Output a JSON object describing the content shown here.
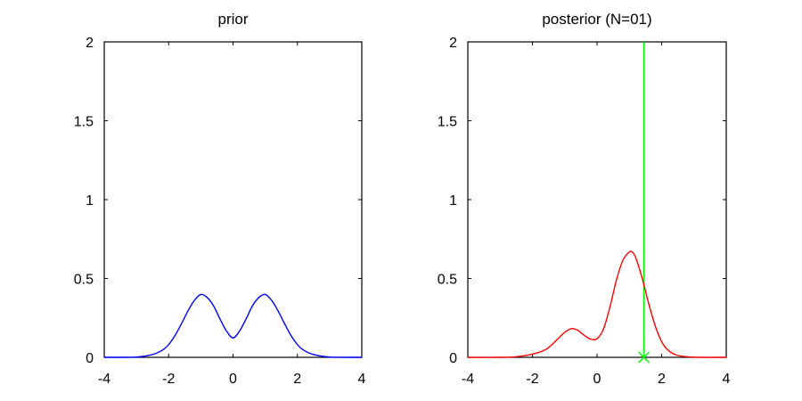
{
  "chart_data": [
    {
      "type": "line",
      "title": "prior",
      "xlim": [
        -4,
        4
      ],
      "ylim": [
        0,
        2
      ],
      "xticks": [
        -4,
        -2,
        0,
        2,
        4
      ],
      "yticks": [
        0,
        0.5,
        1,
        1.5,
        2
      ],
      "xtick_labels": [
        "-4",
        "-2",
        "0",
        "2",
        "4"
      ],
      "ytick_labels": [
        "0",
        "0.5",
        "1",
        "1.5",
        "2"
      ],
      "grid": false,
      "series": [
        {
          "color": "#0000ff",
          "x": [
            -4.0,
            -3.0,
            -2.5,
            -2.2,
            -2.0,
            -1.8,
            -1.6,
            -1.4,
            -1.2,
            -1.0,
            -0.8,
            -0.6,
            -0.4,
            -0.2,
            0.0,
            0.2,
            0.4,
            0.6,
            0.8,
            1.0,
            1.2,
            1.4,
            1.6,
            1.8,
            2.0,
            2.2,
            2.5,
            3.0,
            4.0
          ],
          "y": [
            0.0,
            0.002,
            0.018,
            0.045,
            0.081,
            0.139,
            0.214,
            0.294,
            0.361,
            0.399,
            0.379,
            0.325,
            0.241,
            0.166,
            0.123,
            0.166,
            0.241,
            0.325,
            0.379,
            0.399,
            0.361,
            0.294,
            0.214,
            0.139,
            0.081,
            0.045,
            0.018,
            0.002,
            0.0
          ]
        }
      ]
    },
    {
      "type": "line",
      "title": "posterior (N=01)",
      "xlim": [
        -4,
        4
      ],
      "ylim": [
        0,
        2
      ],
      "xticks": [
        -4,
        -2,
        0,
        2,
        4
      ],
      "yticks": [
        0,
        0.5,
        1,
        1.5,
        2
      ],
      "xtick_labels": [
        "-4",
        "-2",
        "0",
        "2",
        "4"
      ],
      "ytick_labels": [
        "0",
        "0.5",
        "1",
        "1.5",
        "2"
      ],
      "grid": false,
      "series": [
        {
          "color": "#ff0000",
          "x": [
            -4.0,
            -3.0,
            -2.5,
            -2.0,
            -1.6,
            -1.4,
            -1.2,
            -1.0,
            -0.8,
            -0.6,
            -0.4,
            -0.2,
            0.0,
            0.2,
            0.4,
            0.6,
            0.8,
            1.0,
            1.1,
            1.2,
            1.4,
            1.6,
            1.8,
            2.0,
            2.2,
            2.5,
            3.0,
            4.0
          ],
          "y": [
            0.0,
            0.0,
            0.004,
            0.02,
            0.048,
            0.08,
            0.12,
            0.158,
            0.182,
            0.172,
            0.14,
            0.116,
            0.118,
            0.18,
            0.32,
            0.49,
            0.615,
            0.668,
            0.665,
            0.63,
            0.5,
            0.34,
            0.2,
            0.1,
            0.045,
            0.012,
            0.001,
            0.0
          ]
        }
      ],
      "vline": {
        "x": 1.45,
        "color": "#00ff00"
      },
      "marker": {
        "x": 1.45,
        "y": 0,
        "symbol": "x",
        "color": "#00ff00"
      }
    }
  ]
}
